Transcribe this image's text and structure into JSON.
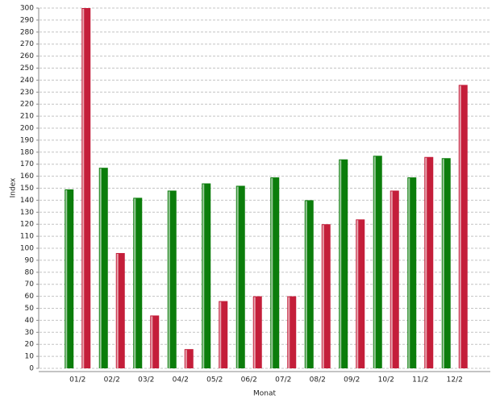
{
  "chart_data": {
    "type": "bar",
    "x_label": "Monat",
    "y_label": "Index",
    "categories": [
      "01/2",
      "02/2",
      "03/2",
      "04/2",
      "05/2",
      "06/2",
      "07/2",
      "08/2",
      "09/2",
      "10/2",
      "11/2",
      "12/2"
    ],
    "series": [
      {
        "color": "#0b7d0b",
        "values": [
          149,
          167,
          142,
          148,
          154,
          152,
          159,
          140,
          174,
          177,
          159,
          175
        ]
      },
      {
        "color": "#c41e3a",
        "values": [
          300,
          96,
          44,
          16,
          56,
          60,
          60,
          120,
          124,
          148,
          176,
          236
        ]
      }
    ],
    "ylim": [
      0,
      300
    ],
    "yticks": [
      0,
      10,
      20,
      30,
      40,
      50,
      60,
      70,
      80,
      90,
      100,
      110,
      120,
      130,
      140,
      150,
      160,
      170,
      180,
      190,
      200,
      210,
      220,
      230,
      240,
      250,
      260,
      270,
      280,
      290,
      300
    ],
    "grid": true
  }
}
